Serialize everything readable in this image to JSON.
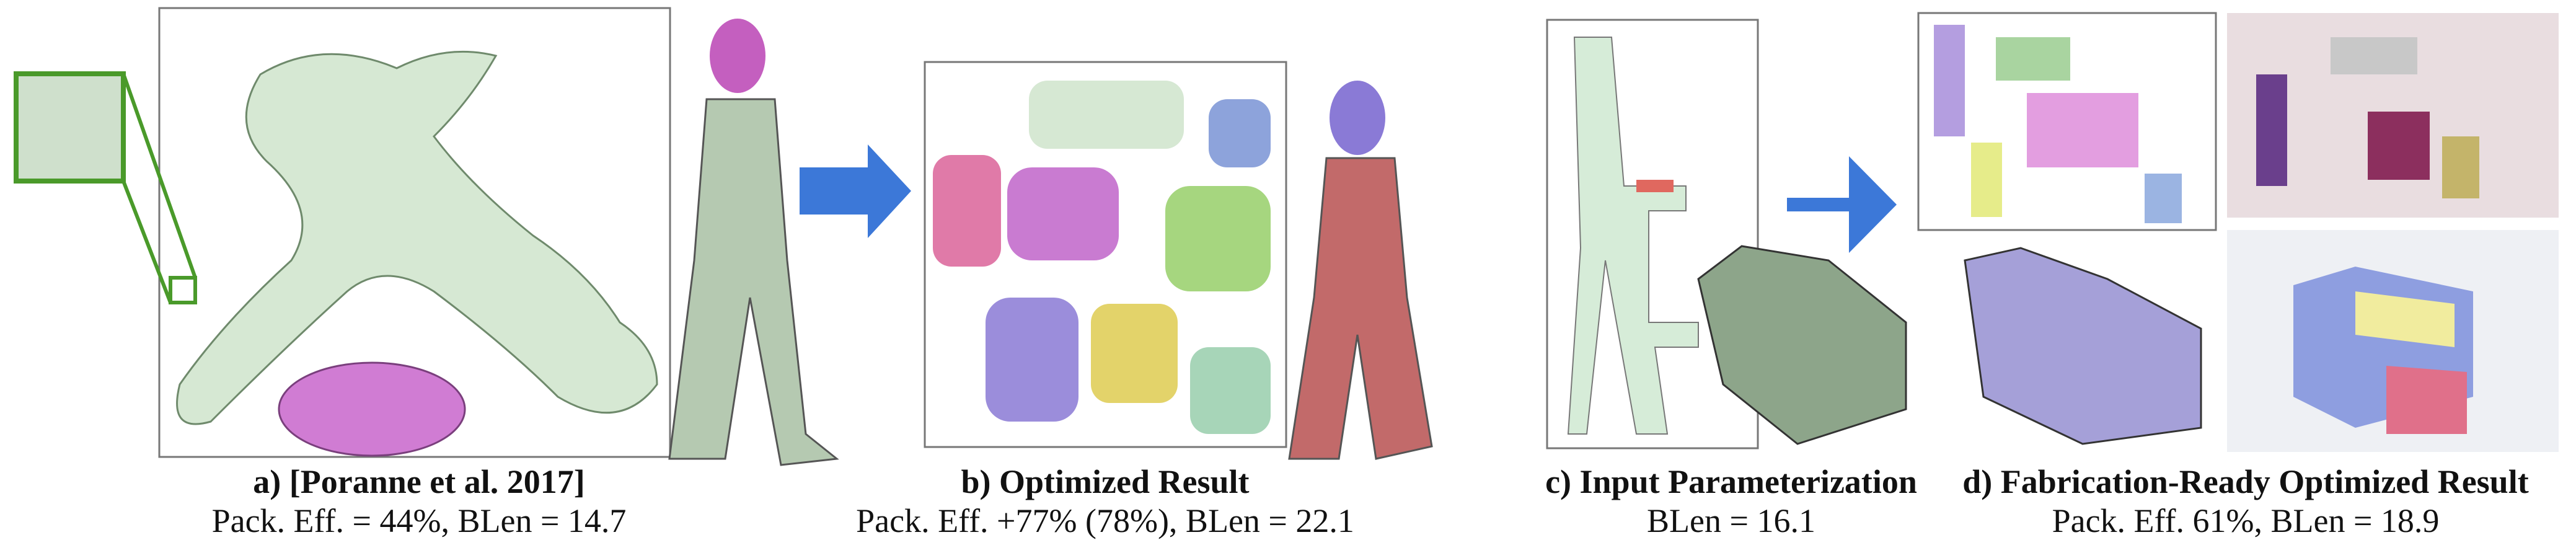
{
  "panels": [
    {
      "label": "a) [Poranne et al. 2017]",
      "caption": "Pack. Eff. = 44%, BLen = 14.7"
    },
    {
      "label": "b) Optimized Result",
      "caption": "Pack. Eff. +77% (78%), BLen = 22.1"
    },
    {
      "label": "c) Input Parameterization",
      "caption": "BLen = 16.1"
    },
    {
      "label": "d) Fabrication-Ready Optimized Result",
      "caption": "Pack. Eff. 61%, BLen = 18.9"
    }
  ]
}
